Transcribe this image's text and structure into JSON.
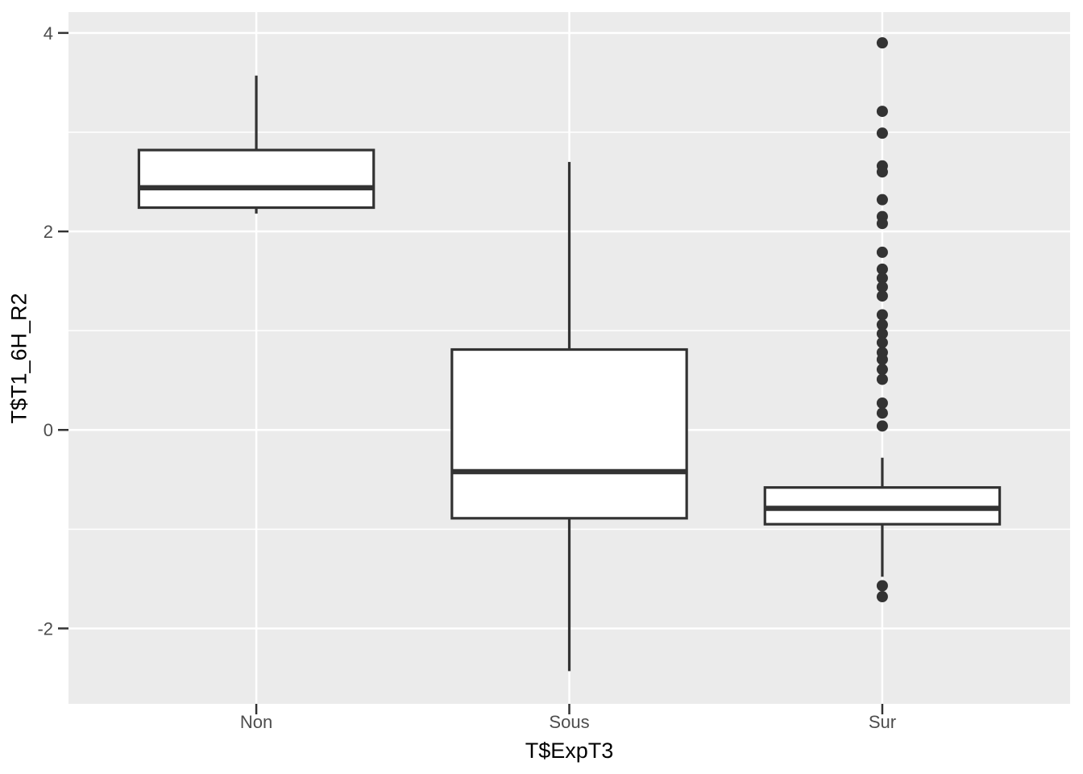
{
  "figure": {
    "background": "#FFFFFF",
    "panel_background": "#EBEBEB",
    "grid_color": "#FFFFFF",
    "box_stroke_color": "#333333",
    "box_fill_color": "#FFFFFF",
    "outlier_color": "#333333",
    "tick_color": "#333333",
    "axis_text_color": "#4D4D4D",
    "axis_title_color": "#000000"
  },
  "chart_data": {
    "type": "boxplot",
    "title": "",
    "xlabel": "T$ExpT3",
    "ylabel": "T$T1_6H_R2",
    "categories": [
      "Non",
      "Sous",
      "Sur"
    ],
    "ylim": [
      -2.76,
      4.21
    ],
    "y_major_ticks": [
      4,
      2,
      0,
      -2
    ],
    "y_major_tick_labels": [
      "4",
      "2",
      "0",
      "-2"
    ],
    "y_minor_ticks": [
      3,
      1,
      -1
    ],
    "grid": "on",
    "legend": "none",
    "series": [
      {
        "category": "Non",
        "min": 2.18,
        "q1": 2.24,
        "median": 2.44,
        "q3": 2.82,
        "max": 3.57,
        "outliers": []
      },
      {
        "category": "Sous",
        "min": -2.43,
        "q1": -0.89,
        "median": -0.42,
        "q3": 0.81,
        "max": 2.7,
        "outliers": []
      },
      {
        "category": "Sur",
        "min": -1.48,
        "q1": -0.95,
        "median": -0.79,
        "q3": -0.58,
        "max": -0.28,
        "outliers": [
          3.9,
          3.21,
          2.99,
          2.66,
          2.6,
          2.32,
          2.15,
          2.08,
          1.79,
          1.62,
          1.53,
          1.44,
          1.35,
          1.16,
          1.06,
          0.97,
          0.88,
          0.78,
          0.71,
          0.61,
          0.51,
          0.27,
          0.17,
          0.04,
          -1.57,
          -1.68
        ]
      }
    ]
  }
}
